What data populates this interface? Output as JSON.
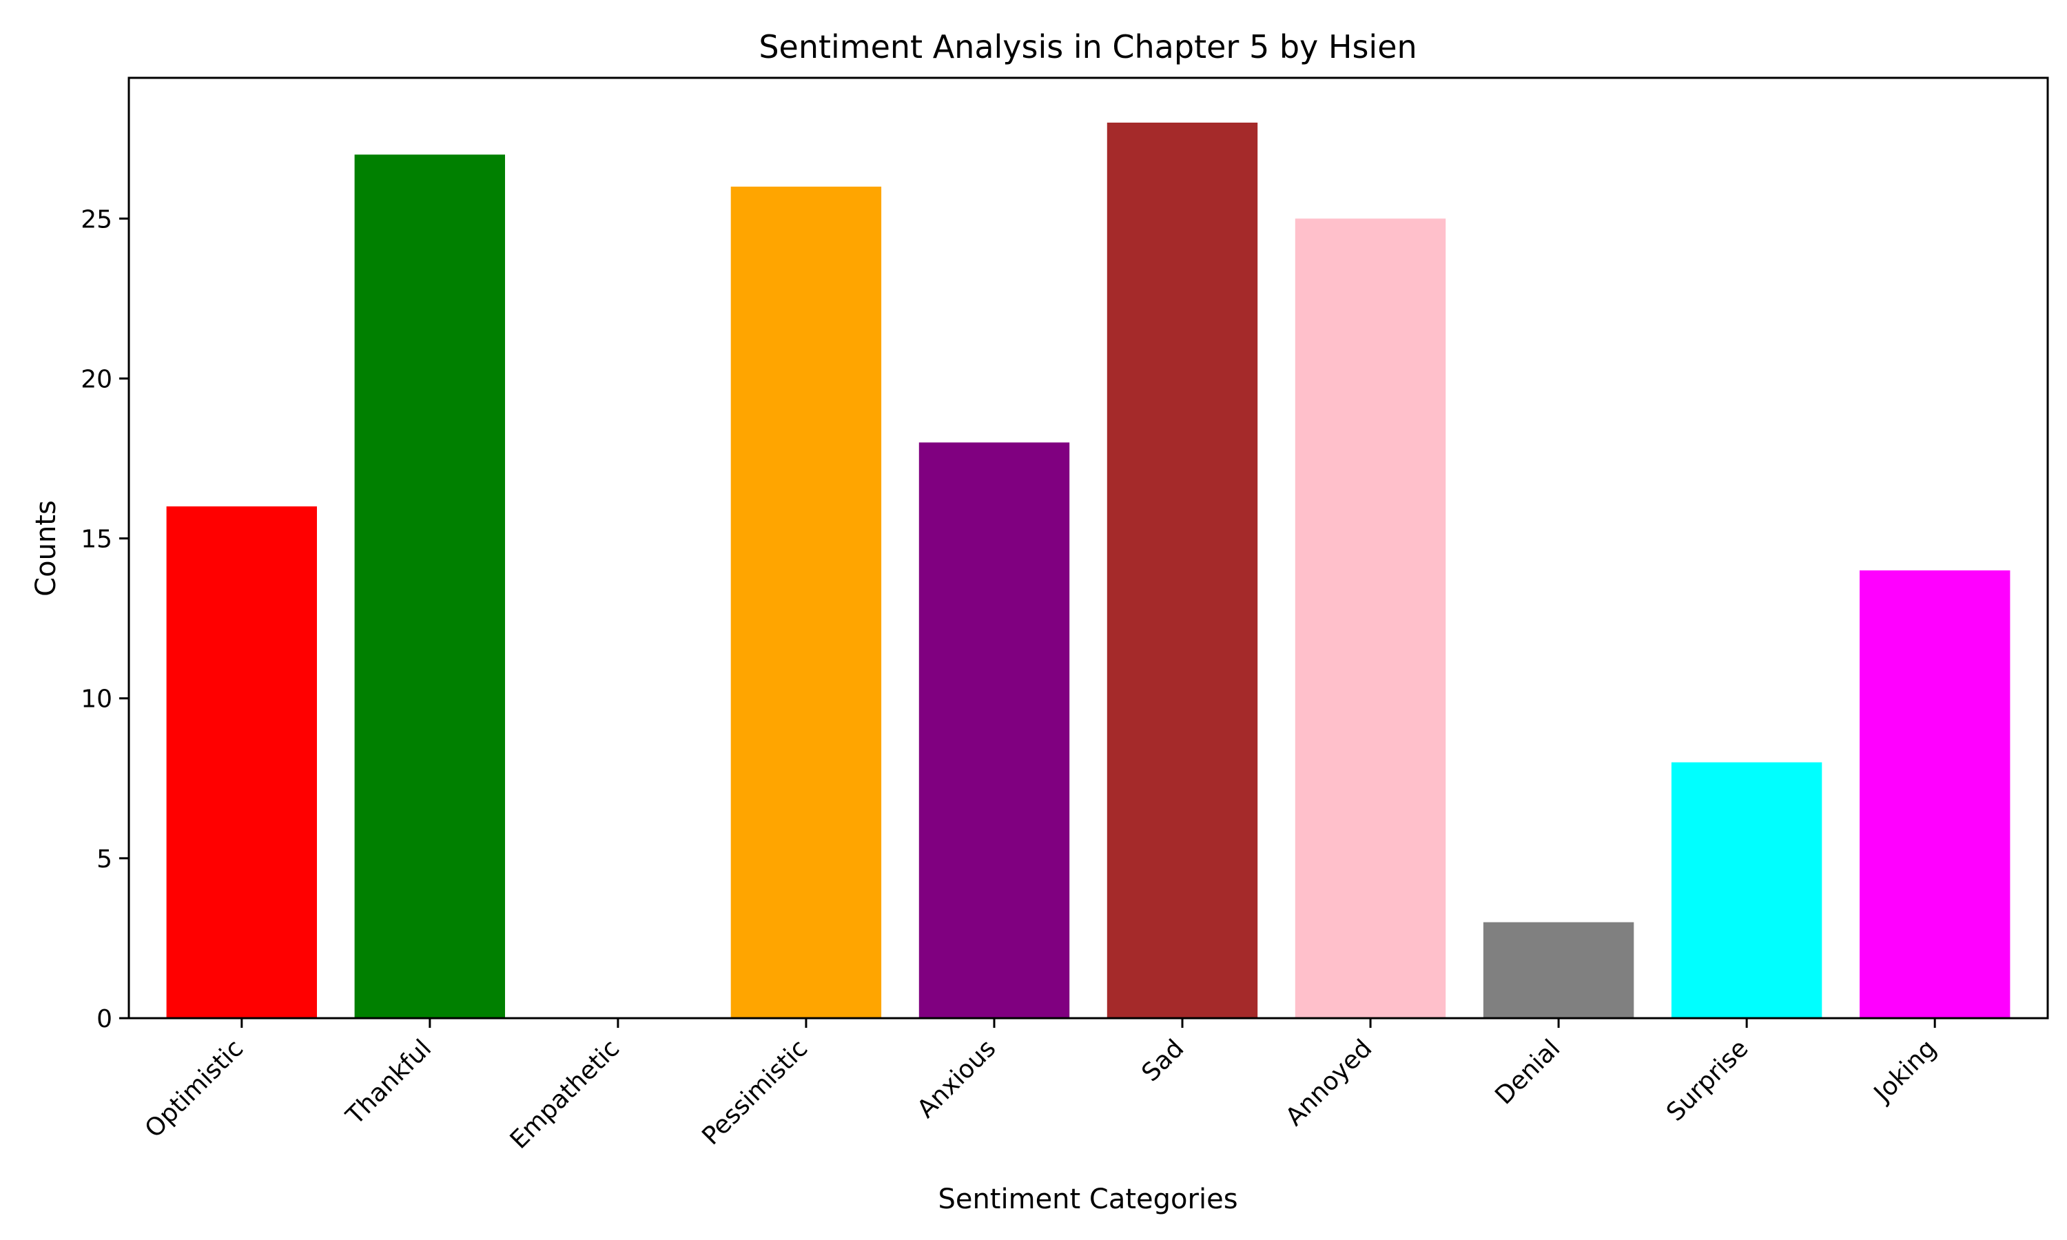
{
  "chart_data": {
    "type": "bar",
    "title": "Sentiment Analysis in Chapter 5 by Hsien",
    "xlabel": "Sentiment Categories",
    "ylabel": "Counts",
    "categories": [
      "Optimistic",
      "Thankful",
      "Empathetic",
      "Pessimistic",
      "Anxious",
      "Sad",
      "Annoyed",
      "Denial",
      "Surprise",
      "Joking"
    ],
    "values": [
      16,
      27,
      0,
      26,
      18,
      28,
      25,
      3,
      8,
      14
    ],
    "colors": [
      "#ff0000",
      "#008000",
      "#0000ff",
      "#ffa500",
      "#800080",
      "#a52a2a",
      "#ffc0cb",
      "#808080",
      "#00ffff",
      "#ff00ff"
    ],
    "ylim": [
      0,
      29.4
    ],
    "yticks": [
      0,
      5,
      10,
      15,
      20,
      25
    ],
    "grid": false,
    "legend": "none"
  }
}
